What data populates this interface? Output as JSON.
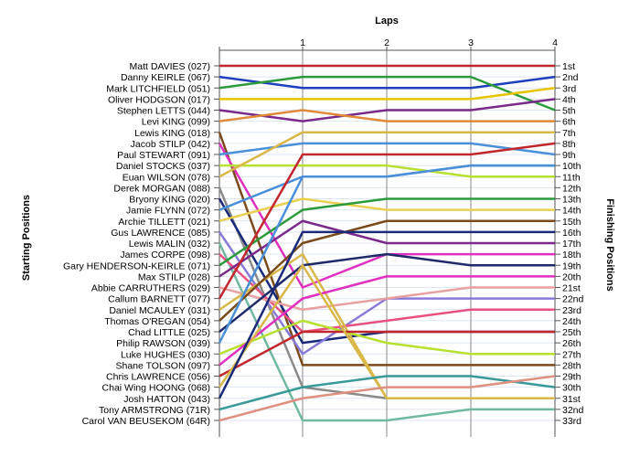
{
  "chart_data": {
    "type": "line",
    "title": "",
    "xlabel": "Laps",
    "ylabel_left": "Starting Positions",
    "ylabel_right": "Finishing Positions",
    "x": [
      0,
      1,
      2,
      3,
      4
    ],
    "x_ticks": [
      "1",
      "2",
      "3",
      "4"
    ],
    "ylim": [
      1,
      33
    ],
    "y_inverted": true,
    "grid": true,
    "start_labels": [
      "Matt DAVIES (027)",
      "Danny KEIRLE (067)",
      "Mark LITCHFIELD (051)",
      "Oliver HODGSON (017)",
      "Stephen LETTS (044)",
      "Levi KING (099)",
      "Lewis KING (018)",
      "Jacob STILP (042)",
      "Paul STEWART (091)",
      "Daniel STOCKS (037)",
      "Euan WILSON (078)",
      "Derek MORGAN (088)",
      "Bryony KING (020)",
      "Jamie FLYNN (072)",
      "Archie TILLETT (021)",
      "Gus LAWRENCE (085)",
      "Lewis MALIN (032)",
      "James CORPE (098)",
      "Gary HENDERSON-KEIRLE (071)",
      "Max STILP (028)",
      "Abbie CARRUTHERS (029)",
      "Callum BARNETT (077)",
      "Daniel MCAULEY (031)",
      "Thomas O'REGAN (054)",
      "Chad LITTLE (025)",
      "Philip RAWSON (039)",
      "Luke HUGHES (030)",
      "Shane TOLSON (097)",
      "Chris LAWRENCE (056)",
      "Chai Wing HOONG (068)",
      "Josh HATTON (043)",
      "Tony ARMSTRONG (71R)",
      "Carol VAN BEUSEKOM (64R)"
    ],
    "finish_labels": [
      "1st",
      "2nd",
      "3rd",
      "4th",
      "5th",
      "6th",
      "7th",
      "8th",
      "9th",
      "10th",
      "11th",
      "12th",
      "13th",
      "14th",
      "15th",
      "16th",
      "17th",
      "18th",
      "19th",
      "20th",
      "21st",
      "22nd",
      "23rd",
      "24th",
      "25th",
      "26th",
      "27th",
      "28th",
      "29th",
      "30th",
      "31st",
      "32nd",
      "33rd"
    ],
    "series": [
      {
        "color": "#c0282e",
        "values": [
          1,
          1,
          1,
          1,
          1
        ]
      },
      {
        "color": "#1f3fbf",
        "values": [
          2,
          3,
          3,
          3,
          2
        ]
      },
      {
        "color": "#2a9a3a",
        "values": [
          3,
          2,
          2,
          2,
          5
        ]
      },
      {
        "color": "#e6c400",
        "values": [
          4,
          4,
          4,
          4,
          3
        ]
      },
      {
        "color": "#7a2a8a",
        "values": [
          5,
          6,
          5,
          5,
          4
        ]
      },
      {
        "color": "#e08a3a",
        "values": [
          6,
          5,
          6,
          6,
          6
        ]
      },
      {
        "color": "#7a4a1a",
        "values": [
          7,
          28,
          28,
          28,
          28
        ]
      },
      {
        "color": "#e030c0",
        "values": [
          8,
          21,
          18,
          18,
          18
        ]
      },
      {
        "color": "#4a90d8",
        "values": [
          9,
          8,
          8,
          8,
          9
        ]
      },
      {
        "color": "#b8e030",
        "values": [
          10,
          10,
          10,
          11,
          11
        ]
      },
      {
        "color": "#d8b848",
        "values": [
          11,
          7,
          7,
          7,
          7
        ]
      },
      {
        "color": "#8a8a8a",
        "values": [
          12,
          30,
          31,
          31,
          31
        ]
      },
      {
        "color": "#1a2a7a",
        "values": [
          13,
          26,
          25,
          25,
          25
        ]
      },
      {
        "color": "#4a90d8",
        "values": [
          14,
          11,
          11,
          10,
          10
        ]
      },
      {
        "color": "#e8d050",
        "values": [
          15,
          13,
          14,
          14,
          14
        ]
      },
      {
        "color": "#8a7ad8",
        "values": [
          16,
          27,
          22,
          22,
          22
        ]
      },
      {
        "color": "#70b8a0",
        "values": [
          17,
          33,
          33,
          32,
          32
        ]
      },
      {
        "color": "#e85080",
        "values": [
          18,
          25,
          24,
          23,
          23
        ]
      },
      {
        "color": "#2a9a3a",
        "values": [
          19,
          14,
          13,
          13,
          13
        ]
      },
      {
        "color": "#7a2a8a",
        "values": [
          20,
          15,
          17,
          17,
          17
        ]
      },
      {
        "color": "#e8a0a0",
        "values": [
          21,
          23,
          22,
          21,
          21
        ]
      },
      {
        "color": "#c0282e",
        "values": [
          22,
          9,
          9,
          9,
          8
        ]
      },
      {
        "color": "#d8b848",
        "values": [
          23,
          18,
          31,
          31,
          31
        ]
      },
      {
        "color": "#7a4a1a",
        "values": [
          24,
          17,
          15,
          15,
          15
        ]
      },
      {
        "color": "#1f2a6a",
        "values": [
          25,
          19,
          18,
          19,
          19
        ]
      },
      {
        "color": "#4a90d8",
        "values": [
          26,
          11,
          11,
          10,
          10
        ]
      },
      {
        "color": "#b8e030",
        "values": [
          27,
          24,
          26,
          27,
          27
        ]
      },
      {
        "color": "#e030c0",
        "values": [
          28,
          22,
          20,
          20,
          20
        ]
      },
      {
        "color": "#c0282e",
        "values": [
          29,
          25,
          25,
          25,
          25
        ]
      },
      {
        "color": "#d8b848",
        "values": [
          30,
          19,
          31,
          31,
          31
        ]
      },
      {
        "color": "#1a2a7a",
        "values": [
          31,
          16,
          16,
          16,
          16
        ]
      },
      {
        "color": "#3a9a9a",
        "values": [
          32,
          30,
          29,
          29,
          30
        ]
      },
      {
        "color": "#e09080",
        "values": [
          33,
          31,
          30,
          30,
          29
        ]
      }
    ]
  }
}
